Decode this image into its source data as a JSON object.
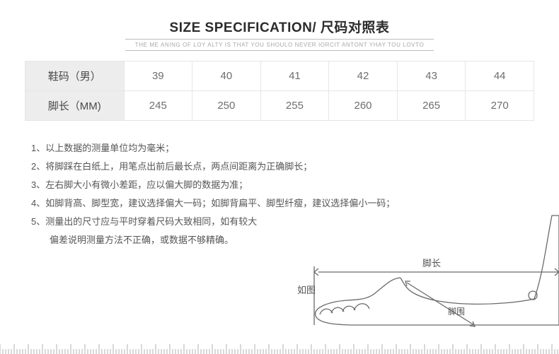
{
  "title": "SIZE SPECIFICATION/ 尺码对照表",
  "subtitle": "THE ME ANING OF LOY ALTY IS THAT YOU SHOULO NEVER IORCIT ANTONT YHAY TOU LOVTO",
  "table": {
    "rows": [
      {
        "label": "鞋码（男）",
        "cells": [
          "39",
          "40",
          "41",
          "42",
          "43",
          "44"
        ]
      },
      {
        "label": "脚长（MM)",
        "cells": [
          "245",
          "250",
          "255",
          "260",
          "265",
          "270"
        ]
      }
    ]
  },
  "notes": [
    "1、以上数据的测量单位均为毫米；",
    "2、将脚踩在白纸上，用笔点出前后最长点，两点间距离为正确脚长；",
    "3、左右脚大小有微小差距，应以偏大脚的数据为准；",
    "4、如脚背高、脚型宽，建议选择偏大一码；如脚背扁平、脚型纤瘦，建议选择偏小一码；",
    "5、测量出的尺寸应与平时穿着尺码大致相同，如有较大",
    "　 偏差说明测量方法不正确，或数据不够精确。"
  ],
  "diagram": {
    "label_length": "脚长",
    "label_width": "脚围",
    "label_as_shown": "如图",
    "stroke": "#6a6a6a",
    "text_color": "#555555"
  },
  "ruler": {
    "tick_color": "#b0b0b0",
    "background": "#ffffff"
  },
  "colors": {
    "title": "#2b2b2b",
    "subtitle": "#a8a8a8",
    "border": "#e6e6e6",
    "header_bg": "#ededed",
    "cell_text": "#6e6e6e",
    "note_text": "#555555"
  }
}
